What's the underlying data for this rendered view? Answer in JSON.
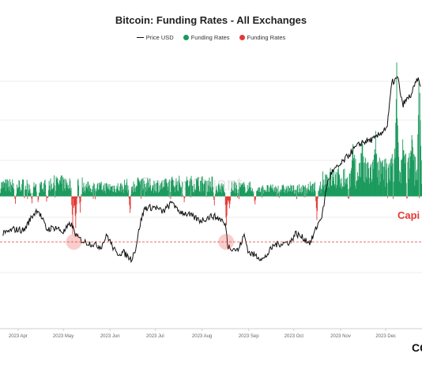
{
  "chart_data": {
    "type": "bar+line",
    "title": "Bitcoin: Funding Rates - All Exchanges",
    "legend": [
      {
        "label": "Price USD",
        "color": "#111111",
        "marker": "line"
      },
      {
        "label": "Funding Rates",
        "color": "#1a9a5c",
        "marker": "dot"
      },
      {
        "label": "Funding Rates",
        "color": "#e53935",
        "marker": "dot"
      }
    ],
    "x_axis": {
      "tick_labels": [
        "2023 Apr",
        "2023 May",
        "2023 Jun",
        "2023 Jul",
        "2023 Aug",
        "2023 Sep",
        "2023 Oct",
        "2023 Nov",
        "2023 Dec"
      ]
    },
    "series": [
      {
        "name": "Price USD",
        "type": "line",
        "color": "#111111",
        "points": [
          [
            "2023-03-22",
            27800
          ],
          [
            "2023-03-29",
            28300
          ],
          [
            "2023-04-05",
            28200
          ],
          [
            "2023-04-10",
            29600
          ],
          [
            "2023-04-14",
            30400
          ],
          [
            "2023-04-20",
            28300
          ],
          [
            "2023-04-26",
            28500
          ],
          [
            "2023-05-01",
            28000
          ],
          [
            "2023-05-06",
            28900
          ],
          [
            "2023-05-10",
            27500
          ],
          [
            "2023-05-15",
            27000
          ],
          [
            "2023-05-20",
            26800
          ],
          [
            "2023-05-26",
            26500
          ],
          [
            "2023-05-30",
            27700
          ],
          [
            "2023-06-05",
            25800
          ],
          [
            "2023-06-10",
            25900
          ],
          [
            "2023-06-15",
            25200
          ],
          [
            "2023-06-18",
            26300
          ],
          [
            "2023-06-21",
            28900
          ],
          [
            "2023-06-24",
            30500
          ],
          [
            "2023-07-01",
            30600
          ],
          [
            "2023-07-06",
            30100
          ],
          [
            "2023-07-13",
            31200
          ],
          [
            "2023-07-15",
            30300
          ],
          [
            "2023-07-22",
            29900
          ],
          [
            "2023-07-31",
            29200
          ],
          [
            "2023-08-08",
            29700
          ],
          [
            "2023-08-14",
            29300
          ],
          [
            "2023-08-17",
            28500
          ],
          [
            "2023-08-18",
            26600
          ],
          [
            "2023-08-25",
            26100
          ],
          [
            "2023-08-29",
            27700
          ],
          [
            "2023-09-01",
            25900
          ],
          [
            "2023-09-11",
            25200
          ],
          [
            "2023-09-18",
            26700
          ],
          [
            "2023-09-29",
            27000
          ],
          [
            "2023-10-02",
            27900
          ],
          [
            "2023-10-12",
            26900
          ],
          [
            "2023-10-16",
            28500
          ],
          [
            "2023-10-20",
            29900
          ],
          [
            "2023-10-23",
            33000
          ],
          [
            "2023-10-26",
            34200
          ],
          [
            "2023-11-01",
            35000
          ],
          [
            "2023-11-09",
            36500
          ],
          [
            "2023-11-15",
            37300
          ],
          [
            "2023-11-24",
            37700
          ],
          [
            "2023-12-02",
            39000
          ],
          [
            "2023-12-05",
            43500
          ],
          [
            "2023-12-09",
            44000
          ],
          [
            "2023-12-12",
            41200
          ],
          [
            "2023-12-18",
            42300
          ],
          [
            "2023-12-22",
            43900
          ],
          [
            "2023-12-24",
            43100
          ]
        ]
      },
      {
        "name": "Funding Rates",
        "type": "bar",
        "positive_color": "#1a9a5c",
        "negative_color": "#e53935",
        "start": "2023-03-20",
        "end": "2023-12-24",
        "bars_per_day": 3,
        "level_segments": [
          [
            "2023-03-20",
            0.006
          ],
          [
            "2023-04-20",
            0.007
          ],
          [
            "2023-05-15",
            0.005
          ],
          [
            "2023-06-10",
            0.006
          ],
          [
            "2023-07-10",
            0.007
          ],
          [
            "2023-08-10",
            0.005
          ],
          [
            "2023-09-10",
            0.004
          ],
          [
            "2023-10-10",
            0.005
          ],
          [
            "2023-10-20",
            0.01
          ],
          [
            "2023-11-10",
            0.013
          ],
          [
            "2023-12-01",
            0.016
          ]
        ],
        "spikes": [
          [
            "2023-03-30",
            -0.004
          ],
          [
            "2023-04-10",
            -0.005
          ],
          [
            "2023-04-14",
            -0.004
          ],
          [
            "2023-04-20",
            -0.006
          ],
          [
            "2023-05-07",
            -0.022
          ],
          [
            "2023-05-09",
            -0.019
          ],
          [
            "2023-05-12",
            -0.009
          ],
          [
            "2023-06-14",
            -0.01
          ],
          [
            "2023-06-20",
            0.012
          ],
          [
            "2023-07-20",
            -0.004
          ],
          [
            "2023-08-09",
            -0.005
          ],
          [
            "2023-08-17",
            -0.018
          ],
          [
            "2023-08-19",
            -0.009
          ],
          [
            "2023-09-05",
            -0.005
          ],
          [
            "2023-10-16",
            -0.013
          ],
          [
            "2023-11-09",
            0.028
          ],
          [
            "2023-11-15",
            0.034
          ],
          [
            "2023-11-24",
            0.036
          ],
          [
            "2023-12-08",
            0.072
          ],
          [
            "2023-12-12",
            0.031
          ],
          [
            "2023-12-18",
            0.04
          ],
          [
            "2023-12-23",
            0.076
          ]
        ]
      }
    ],
    "price_range": [
      18000,
      47000
    ],
    "funding_range": [
      -0.07,
      0.078
    ],
    "reference_line": {
      "price": 27000,
      "style": "dashed",
      "color": "#e53935"
    },
    "highlight_points": [
      [
        "2023-05-08",
        27000
      ],
      [
        "2023-08-17",
        27000
      ]
    ],
    "annotation": "Capi",
    "watermark": "CryptoQuant",
    "logo": "CQ"
  }
}
